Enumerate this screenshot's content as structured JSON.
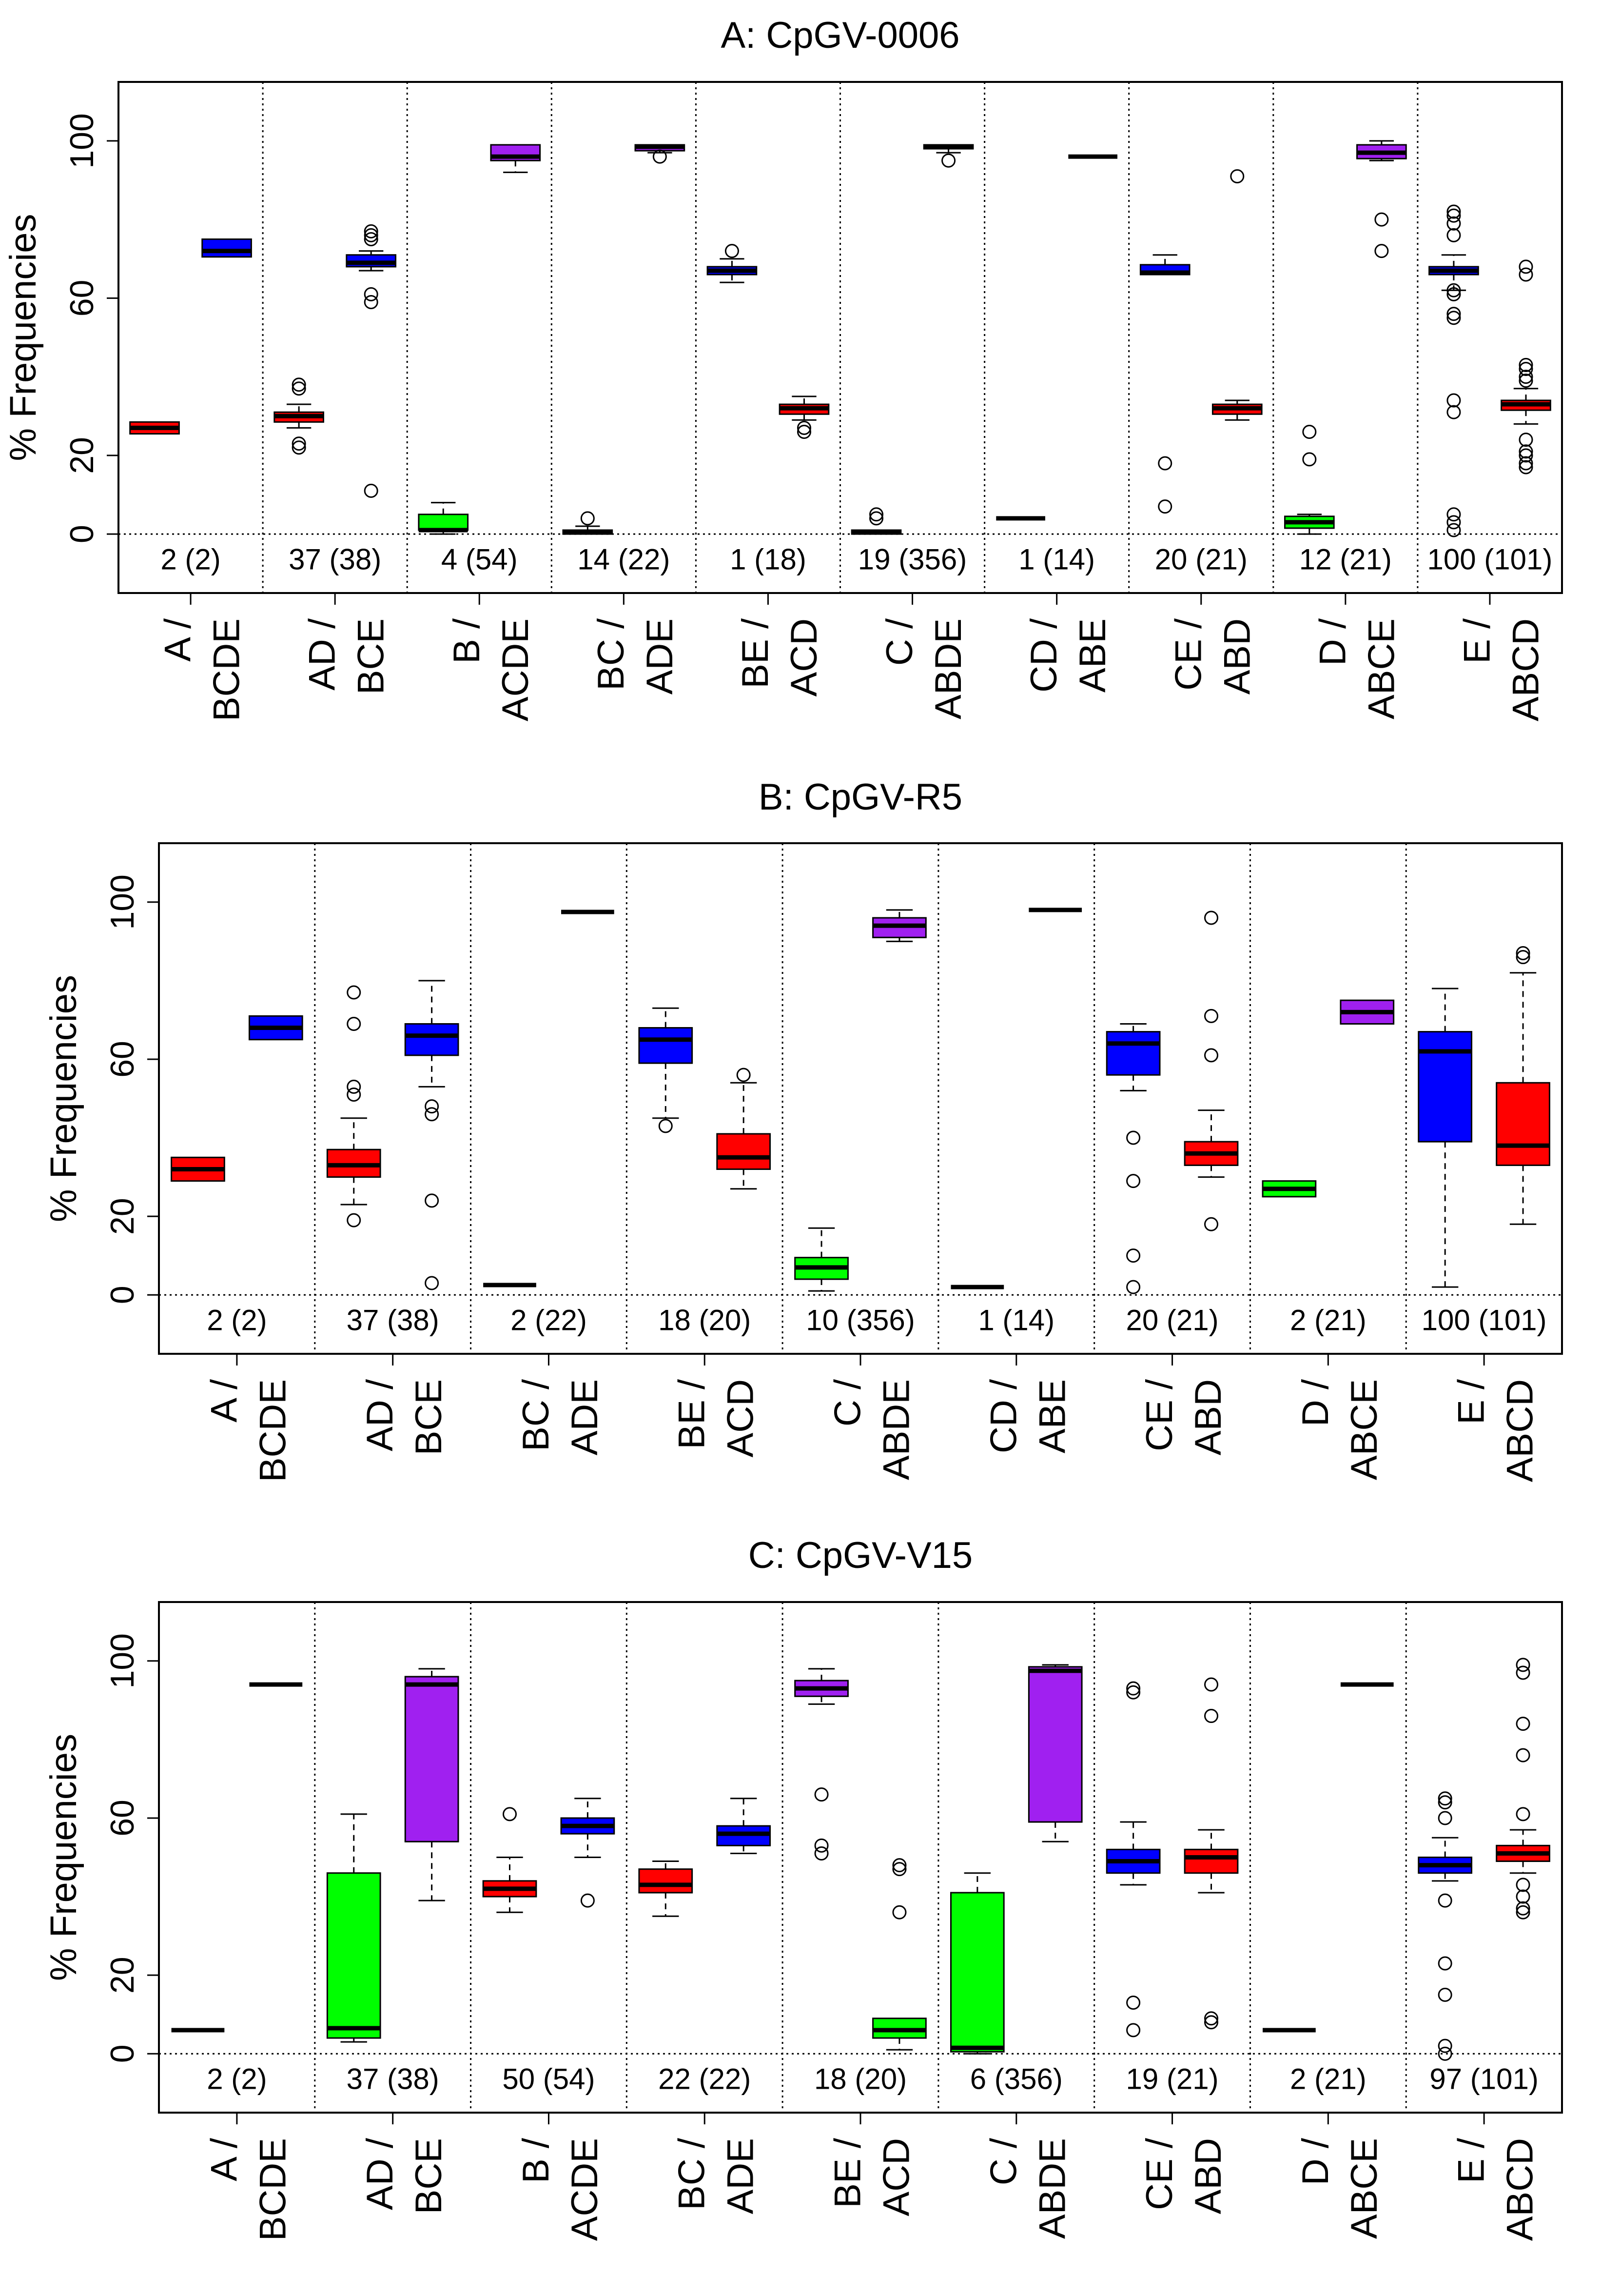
{
  "colors": {
    "red": "#ff0000",
    "blue": "#0000ff",
    "green": "#00ff00",
    "purple": "#a020f0",
    "black": "#000000"
  },
  "chart_data": [
    {
      "type": "boxplot",
      "title": "A: CpGV-0006",
      "ylabel": "% Frequencies",
      "ylim": [
        -15,
        115
      ],
      "yticks": [
        0,
        20,
        60,
        100
      ],
      "grid": false,
      "groups": [
        {
          "labels": [
            "A /",
            "BCDE"
          ],
          "count": "2 (2)",
          "boxes": [
            {
              "color": "red",
              "min": 25.5,
              "q1": 25.5,
              "median": 27,
              "q3": 28.5,
              "max": 28.5,
              "outliers": []
            },
            {
              "color": "blue",
              "min": 70.5,
              "q1": 70.5,
              "median": 72,
              "q3": 75,
              "max": 75,
              "outliers": []
            }
          ]
        },
        {
          "labels": [
            "AD /",
            "BCE"
          ],
          "count": "37 (38)",
          "boxes": [
            {
              "color": "red",
              "min": 27,
              "q1": 28.5,
              "median": 30,
              "q3": 31,
              "max": 33,
              "outliers": [
                22,
                23,
                37,
                38
              ]
            },
            {
              "color": "blue",
              "min": 67,
              "q1": 68,
              "median": 69,
              "q3": 71,
              "max": 72,
              "outliers": [
                11,
                59,
                61,
                75,
                76,
                77
              ]
            }
          ]
        },
        {
          "labels": [
            "B /",
            "ACDE"
          ],
          "count": "4 (54)",
          "boxes": [
            {
              "color": "green",
              "min": 0,
              "q1": 1,
              "median": 1,
              "q3": 5,
              "max": 8,
              "outliers": []
            },
            {
              "color": "purple",
              "min": 92,
              "q1": 95,
              "median": 96,
              "q3": 99,
              "max": 99,
              "outliers": []
            }
          ]
        },
        {
          "labels": [
            "BC /",
            "ADE"
          ],
          "count": "14 (22)",
          "boxes": [
            {
              "color": "blue",
              "min": 0,
              "q1": 0,
              "median": 0.5,
              "q3": 1,
              "max": 2,
              "outliers": [
                4
              ]
            },
            {
              "color": "purple",
              "min": 97,
              "q1": 97.5,
              "median": 98.5,
              "q3": 99,
              "max": 99,
              "outliers": [
                96
              ]
            }
          ]
        },
        {
          "labels": [
            "BE /",
            "ACD"
          ],
          "count": "1 (18)",
          "boxes": [
            {
              "color": "blue",
              "min": 64,
              "q1": 66,
              "median": 67,
              "q3": 68,
              "max": 70,
              "outliers": [
                72
              ]
            },
            {
              "color": "red",
              "min": 29,
              "q1": 30.5,
              "median": 32,
              "q3": 33,
              "max": 35,
              "outliers": [
                26,
                27
              ]
            }
          ]
        },
        {
          "labels": [
            "C /",
            "ABDE"
          ],
          "count": "19 (356)",
          "boxes": [
            {
              "color": "green",
              "min": 0,
              "q1": 0,
              "median": 0.5,
              "q3": 1,
              "max": 1,
              "outliers": [
                4,
                5
              ]
            },
            {
              "color": "purple",
              "min": 97,
              "q1": 98,
              "median": 98.5,
              "q3": 99,
              "max": 99,
              "outliers": [
                95
              ]
            }
          ]
        },
        {
          "labels": [
            "CD /",
            "ABE"
          ],
          "count": "1 (14)",
          "boxes": [
            {
              "color": "green",
              "min": 4,
              "q1": 4,
              "median": 4,
              "q3": 4,
              "max": 4,
              "outliers": []
            },
            {
              "color": "purple",
              "min": 96,
              "q1": 96,
              "median": 96,
              "q3": 96,
              "max": 96,
              "outliers": []
            }
          ]
        },
        {
          "labels": [
            "CE /",
            "ABD"
          ],
          "count": "20 (21)",
          "boxes": [
            {
              "color": "blue",
              "min": 66,
              "q1": 66,
              "median": 66.5,
              "q3": 68.5,
              "max": 71,
              "outliers": [
                7,
                18
              ]
            },
            {
              "color": "red",
              "min": 29,
              "q1": 30.5,
              "median": 32,
              "q3": 33,
              "max": 34,
              "outliers": [
                91
              ]
            }
          ]
        },
        {
          "labels": [
            "D /",
            "ABCE"
          ],
          "count": "12 (21)",
          "boxes": [
            {
              "color": "green",
              "min": 0,
              "q1": 1.5,
              "median": 3,
              "q3": 4.5,
              "max": 5,
              "outliers": [
                19,
                26
              ]
            },
            {
              "color": "purple",
              "min": 95,
              "q1": 95.5,
              "median": 97,
              "q3": 99,
              "max": 100,
              "outliers": [
                72,
                80
              ]
            }
          ]
        },
        {
          "labels": [
            "E /",
            "ABCD"
          ],
          "count": "100 (101)",
          "boxes": [
            {
              "color": "blue",
              "min": 62,
              "q1": 66,
              "median": 67,
              "q3": 68,
              "max": 71,
              "outliers": [
                1,
                3,
                5,
                31,
                34,
                55,
                56,
                61,
                62,
                76,
                79,
                81,
                82
              ]
            },
            {
              "color": "red",
              "min": 28,
              "q1": 31.5,
              "median": 33,
              "q3": 34,
              "max": 37,
              "outliers": [
                17,
                18,
                20,
                21,
                24,
                39,
                40,
                42,
                43,
                66,
                68
              ]
            }
          ]
        }
      ]
    },
    {
      "type": "boxplot",
      "title": "B: CpGV-R5",
      "ylabel": "% Frequencies",
      "ylim": [
        -15,
        115
      ],
      "yticks": [
        0,
        20,
        60,
        100
      ],
      "grid": false,
      "groups": [
        {
          "labels": [
            "A /",
            "BCDE"
          ],
          "count": "2 (2)",
          "boxes": [
            {
              "color": "red",
              "min": 29,
              "q1": 29,
              "median": 32,
              "q3": 35,
              "max": 35,
              "outliers": []
            },
            {
              "color": "blue",
              "min": 65,
              "q1": 65,
              "median": 68,
              "q3": 71,
              "max": 71,
              "outliers": []
            }
          ]
        },
        {
          "labels": [
            "AD /",
            "BCE"
          ],
          "count": "37 (38)",
          "boxes": [
            {
              "color": "red",
              "min": 23,
              "q1": 30,
              "median": 33,
              "q3": 37,
              "max": 45,
              "outliers": [
                19,
                51,
                53,
                69,
                77
              ]
            },
            {
              "color": "blue",
              "min": 53,
              "q1": 61,
              "median": 66,
              "q3": 69,
              "max": 80,
              "outliers": [
                3,
                24,
                46,
                48
              ]
            }
          ]
        },
        {
          "labels": [
            "BC /",
            "ADE"
          ],
          "count": "2 (22)",
          "boxes": [
            {
              "color": "blue",
              "min": 2.5,
              "q1": 2.5,
              "median": 2.5,
              "q3": 2.5,
              "max": 2.5,
              "outliers": []
            },
            {
              "color": "purple",
              "min": 97.5,
              "q1": 97.5,
              "median": 97.5,
              "q3": 97.5,
              "max": 97.5,
              "outliers": []
            }
          ]
        },
        {
          "labels": [
            "BE /",
            "ACD"
          ],
          "count": "18 (20)",
          "boxes": [
            {
              "color": "blue",
              "min": 45,
              "q1": 59,
              "median": 65,
              "q3": 68,
              "max": 73,
              "outliers": [
                43
              ]
            },
            {
              "color": "red",
              "min": 27,
              "q1": 32,
              "median": 35,
              "q3": 41,
              "max": 54,
              "outliers": [
                56
              ]
            }
          ]
        },
        {
          "labels": [
            "C /",
            "ABDE"
          ],
          "count": "10 (356)",
          "boxes": [
            {
              "color": "green",
              "min": 1,
              "q1": 4,
              "median": 7,
              "q3": 9.5,
              "max": 17,
              "outliers": []
            },
            {
              "color": "purple",
              "min": 90,
              "q1": 91,
              "median": 94,
              "q3": 96,
              "max": 98,
              "outliers": []
            }
          ]
        },
        {
          "labels": [
            "CD /",
            "ABE"
          ],
          "count": "1 (14)",
          "boxes": [
            {
              "color": "green",
              "min": 2,
              "q1": 2,
              "median": 2,
              "q3": 2,
              "max": 2,
              "outliers": []
            },
            {
              "color": "purple",
              "min": 98,
              "q1": 98,
              "median": 98,
              "q3": 98,
              "max": 98,
              "outliers": []
            }
          ]
        },
        {
          "labels": [
            "CE /",
            "ABD"
          ],
          "count": "20 (21)",
          "boxes": [
            {
              "color": "blue",
              "min": 52,
              "q1": 56,
              "median": 64,
              "q3": 67,
              "max": 69,
              "outliers": [
                2,
                10,
                29,
                40
              ]
            },
            {
              "color": "red",
              "min": 30,
              "q1": 33,
              "median": 36,
              "q3": 39,
              "max": 47,
              "outliers": [
                18,
                61,
                71,
                96
              ]
            }
          ]
        },
        {
          "labels": [
            "D /",
            "ABCE"
          ],
          "count": "2 (21)",
          "boxes": [
            {
              "color": "green",
              "min": 25,
              "q1": 25,
              "median": 27,
              "q3": 29,
              "max": 29,
              "outliers": []
            },
            {
              "color": "purple",
              "min": 69,
              "q1": 69,
              "median": 72,
              "q3": 75,
              "max": 75,
              "outliers": []
            }
          ]
        },
        {
          "labels": [
            "E /",
            "ABCD"
          ],
          "count": "100 (101)",
          "boxes": [
            {
              "color": "blue",
              "min": 2,
              "q1": 39,
              "median": 62,
              "q3": 67,
              "max": 78,
              "outliers": []
            },
            {
              "color": "red",
              "min": 18,
              "q1": 33,
              "median": 38,
              "q3": 54,
              "max": 82,
              "outliers": [
                86,
                87
              ]
            }
          ]
        }
      ]
    },
    {
      "type": "boxplot",
      "title": "C: CpGV-V15",
      "ylabel": "% Frequencies",
      "ylim": [
        -15,
        115
      ],
      "yticks": [
        0,
        20,
        60,
        100
      ],
      "grid": false,
      "groups": [
        {
          "labels": [
            "A /",
            "BCDE"
          ],
          "count": "2 (2)",
          "boxes": [
            {
              "color": "green",
              "min": 6,
              "q1": 6,
              "median": 6,
              "q3": 6,
              "max": 6,
              "outliers": []
            },
            {
              "color": "blue",
              "min": 94,
              "q1": 94,
              "median": 94,
              "q3": 94,
              "max": 94,
              "outliers": []
            }
          ]
        },
        {
          "labels": [
            "AD /",
            "BCE"
          ],
          "count": "37 (38)",
          "boxes": [
            {
              "color": "green",
              "min": 3,
              "q1": 4,
              "median": 6.5,
              "q3": 46,
              "max": 61,
              "outliers": []
            },
            {
              "color": "purple",
              "min": 39,
              "q1": 54,
              "median": 94,
              "q3": 96,
              "max": 98,
              "outliers": []
            }
          ]
        },
        {
          "labels": [
            "B /",
            "ACDE"
          ],
          "count": "50 (54)",
          "boxes": [
            {
              "color": "red",
              "min": 36,
              "q1": 40,
              "median": 42,
              "q3": 44,
              "max": 50,
              "outliers": [
                61
              ]
            },
            {
              "color": "blue",
              "min": 50,
              "q1": 56,
              "median": 58,
              "q3": 60,
              "max": 65,
              "outliers": [
                39
              ]
            }
          ]
        },
        {
          "labels": [
            "BC /",
            "ADE"
          ],
          "count": "22 (22)",
          "boxes": [
            {
              "color": "red",
              "min": 35,
              "q1": 41,
              "median": 43,
              "q3": 47,
              "max": 49,
              "outliers": []
            },
            {
              "color": "blue",
              "min": 51,
              "q1": 53,
              "median": 56,
              "q3": 58,
              "max": 65,
              "outliers": []
            }
          ]
        },
        {
          "labels": [
            "BE /",
            "ACD"
          ],
          "count": "18 (20)",
          "boxes": [
            {
              "color": "purple",
              "min": 89,
              "q1": 91,
              "median": 93,
              "q3": 95,
              "max": 98,
              "outliers": [
                51,
                53,
                66
              ]
            },
            {
              "color": "green",
              "min": 1,
              "q1": 4,
              "median": 6,
              "q3": 9,
              "max": 9,
              "outliers": [
                36,
                47,
                48
              ]
            }
          ]
        },
        {
          "labels": [
            "C /",
            "ABDE"
          ],
          "count": "6 (356)",
          "boxes": [
            {
              "color": "green",
              "min": 0,
              "q1": 0.5,
              "median": 1.5,
              "q3": 41,
              "max": 46,
              "outliers": []
            },
            {
              "color": "purple",
              "min": 54,
              "q1": 59,
              "median": 97.5,
              "q3": 98.5,
              "max": 99,
              "outliers": []
            }
          ]
        },
        {
          "labels": [
            "CE /",
            "ABD"
          ],
          "count": "19 (21)",
          "boxes": [
            {
              "color": "blue",
              "min": 43,
              "q1": 46,
              "median": 49,
              "q3": 52,
              "max": 59,
              "outliers": [
                6,
                13,
                92,
                93
              ]
            },
            {
              "color": "red",
              "min": 41,
              "q1": 46,
              "median": 50,
              "q3": 52,
              "max": 57,
              "outliers": [
                8,
                9,
                86,
                94
              ]
            }
          ]
        },
        {
          "labels": [
            "D /",
            "ABCE"
          ],
          "count": "2 (21)",
          "boxes": [
            {
              "color": "green",
              "min": 6,
              "q1": 6,
              "median": 6,
              "q3": 6,
              "max": 6,
              "outliers": []
            },
            {
              "color": "blue",
              "min": 94,
              "q1": 94,
              "median": 94,
              "q3": 94,
              "max": 94,
              "outliers": []
            }
          ]
        },
        {
          "labels": [
            "E /",
            "ABCD"
          ],
          "count": "97 (101)",
          "boxes": [
            {
              "color": "blue",
              "min": 44,
              "q1": 46,
              "median": 48,
              "q3": 50,
              "max": 55,
              "outliers": [
                0,
                2,
                15,
                23,
                39,
                60,
                64,
                65
              ]
            },
            {
              "color": "red",
              "min": 46,
              "q1": 49,
              "median": 51,
              "q3": 53,
              "max": 57,
              "outliers": [
                36,
                37,
                40,
                43,
                61,
                76,
                84,
                97,
                99
              ]
            }
          ]
        }
      ]
    }
  ]
}
